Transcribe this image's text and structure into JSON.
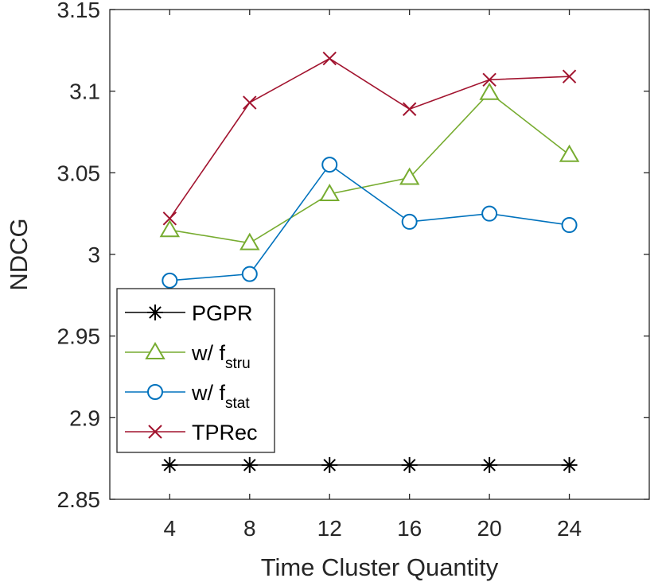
{
  "chart_data": {
    "type": "line",
    "title": "",
    "xlabel": "Time Cluster Quantity",
    "ylabel": "NDCG",
    "x": [
      4,
      8,
      12,
      16,
      20,
      24
    ],
    "xticks": [
      "4",
      "8",
      "12",
      "16",
      "20",
      "24"
    ],
    "xlim": [
      1,
      28
    ],
    "ylim": [
      2.85,
      3.15
    ],
    "yticks": [
      "2.85",
      "2.9",
      "2.95",
      "3",
      "3.05",
      "3.1",
      "3.15"
    ],
    "grid": false,
    "legend_position": "lower-left",
    "series": [
      {
        "name": "PGPR",
        "label_main": "PGPR",
        "label_sub": "",
        "color": "#000000",
        "marker": "asterisk",
        "values": [
          2.871,
          2.871,
          2.871,
          2.871,
          2.871,
          2.871
        ]
      },
      {
        "name": "w/ f_stru",
        "label_main": "w/ f",
        "label_sub": "stru",
        "color": "#77ac30",
        "marker": "triangle",
        "values": [
          3.015,
          3.007,
          3.037,
          3.047,
          3.099,
          3.061
        ]
      },
      {
        "name": "w/ f_stat",
        "label_main": "w/ f",
        "label_sub": "stat",
        "color": "#0072bd",
        "marker": "circle",
        "values": [
          2.984,
          2.988,
          3.055,
          3.02,
          3.025,
          3.018
        ]
      },
      {
        "name": "TPRec",
        "label_main": "TPRec",
        "label_sub": "",
        "color": "#a2142f",
        "marker": "x",
        "values": [
          3.022,
          3.093,
          3.12,
          3.089,
          3.107,
          3.109
        ]
      }
    ]
  }
}
